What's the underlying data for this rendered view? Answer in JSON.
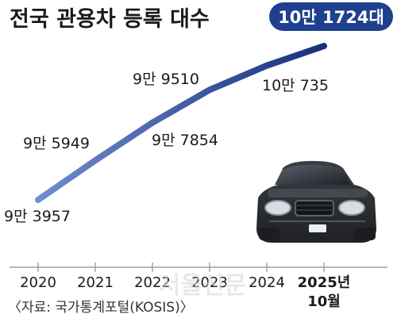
{
  "chart_data": {
    "type": "line",
    "title": "전국 관용차 등록 대수",
    "highlight": "10만 1724대",
    "source": "〈자료: 국가통계포털(KOSIS)〉",
    "watermark": "서울신문",
    "categories": [
      "2020",
      "2021",
      "2022",
      "2023",
      "2024",
      "2025년 10월"
    ],
    "series": [
      {
        "values": [
          93957,
          95949,
          97854,
          99510,
          100735,
          101724
        ],
        "labels": [
          "9만 3957",
          "9만 5949",
          "9만 7854",
          "9만 9510",
          "10만 735",
          "10만 1724"
        ]
      }
    ],
    "grid": false,
    "legend": "none",
    "colors": {
      "line_start": "#6f8ed0",
      "line_end": "#17307a",
      "badge_bg": "#1f3f8f",
      "badge_text": "#ffffff",
      "text": "#1b1b1b",
      "axis": "#9f9f9f",
      "car_body": "#2f3135"
    },
    "icon": "car-icon"
  }
}
